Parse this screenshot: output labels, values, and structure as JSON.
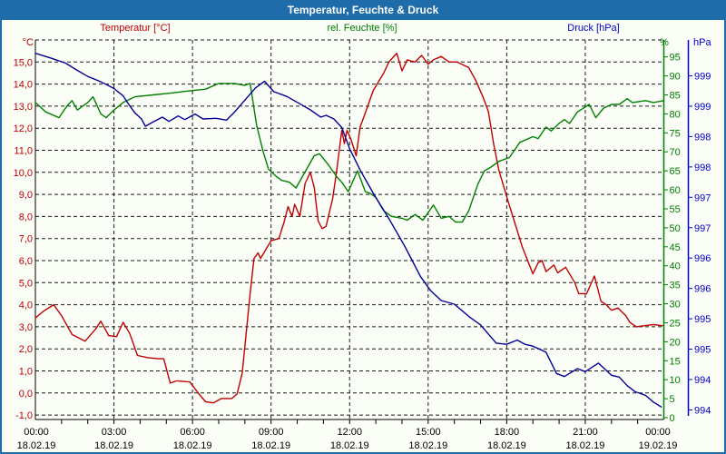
{
  "window": {
    "title": "Temperatur, Feuchte & Druck"
  },
  "colors": {
    "titlebar": "#1f6cab",
    "frame": "#1f6cab",
    "grid": "#1a1a1a",
    "x_label": "#000000"
  },
  "chart_data": {
    "type": "line",
    "title": "Temperatur, Feuchte & Druck",
    "grid": "dashed",
    "x_axis": {
      "range_hours": [
        0,
        24
      ],
      "minor_tick_every_hours": 1,
      "major_tick_every_hours": 3,
      "major_ticks": [
        {
          "hour": 0,
          "time": "00:00",
          "date": "18.02.19"
        },
        {
          "hour": 3,
          "time": "03:00",
          "date": "18.02.19"
        },
        {
          "hour": 6,
          "time": "06:00",
          "date": "18.02.19"
        },
        {
          "hour": 9,
          "time": "09:00",
          "date": "18.02.19"
        },
        {
          "hour": 12,
          "time": "12:00",
          "date": "18.02.19"
        },
        {
          "hour": 15,
          "time": "15:00",
          "date": "18.02.19"
        },
        {
          "hour": 18,
          "time": "18:00",
          "date": "18.02.19"
        },
        {
          "hour": 21,
          "time": "21:00",
          "date": "18.02.19"
        },
        {
          "hour": 24,
          "time": "00:00",
          "date": "19.02.19"
        }
      ]
    },
    "axes": {
      "temperature": {
        "title": "Temperatur [°C]",
        "unit_label": "°C",
        "color": "#c00000",
        "side": "left",
        "range": [
          -1.2,
          16.0
        ],
        "tick_values": [
          15,
          14,
          13,
          12,
          11,
          10,
          9,
          8,
          7,
          6,
          5,
          4,
          3,
          2,
          1,
          0,
          -1
        ],
        "tick_labels": [
          "15,0",
          "14,0",
          "13,0",
          "12,0",
          "11,0",
          "10,0",
          "9,0",
          "8,0",
          "7,0",
          "6,0",
          "5,0",
          "4,0",
          "3,0",
          "2,0",
          "1,0",
          "0,0",
          "-1,0"
        ]
      },
      "humidity": {
        "title": "rel. Feuchte [%]",
        "unit_label": "%",
        "color": "#008000",
        "side": "right",
        "range": [
          0,
          100
        ],
        "tick_values": [
          95,
          90,
          85,
          80,
          75,
          70,
          65,
          60,
          55,
          50,
          45,
          40,
          35,
          30,
          25,
          20,
          15,
          10,
          5,
          0
        ],
        "tick_labels": [
          "95",
          "90",
          "85",
          "80",
          "75",
          "70",
          "65",
          "60",
          "55",
          "50",
          "45",
          "40",
          "35",
          "30",
          "25",
          "20",
          "15",
          "10",
          "5",
          "0"
        ]
      },
      "pressure": {
        "title": "Druck [hPa]",
        "unit_label": "hPa",
        "color": "#0000cc",
        "side": "far-right",
        "range": [
          993.85,
          1000.1
        ],
        "tick_values": [
          999.5,
          999.0,
          998.5,
          998.0,
          997.5,
          997.0,
          996.5,
          996.0,
          995.5,
          995.0,
          994.5,
          994.0
        ],
        "tick_labels": [
          "999",
          "999",
          "998",
          "998",
          "997",
          "997",
          "996",
          "996",
          "995",
          "995",
          "994",
          "994"
        ]
      }
    },
    "series": [
      {
        "name": "Temperatur",
        "axis": "temperature",
        "color": "#c00000",
        "points": [
          [
            0,
            3.4
          ],
          [
            0.3,
            3.7
          ],
          [
            0.7,
            4.0
          ],
          [
            1.0,
            3.5
          ],
          [
            1.4,
            2.65
          ],
          [
            1.9,
            2.35
          ],
          [
            2.3,
            2.9
          ],
          [
            2.5,
            3.25
          ],
          [
            2.8,
            2.6
          ],
          [
            3.1,
            2.55
          ],
          [
            3.35,
            3.2
          ],
          [
            3.6,
            2.7
          ],
          [
            3.9,
            1.7
          ],
          [
            4.3,
            1.6
          ],
          [
            4.7,
            1.55
          ],
          [
            4.9,
            1.55
          ],
          [
            5.15,
            0.45
          ],
          [
            5.4,
            0.55
          ],
          [
            5.9,
            0.5
          ],
          [
            6.25,
            -0.05
          ],
          [
            6.5,
            -0.4
          ],
          [
            6.8,
            -0.45
          ],
          [
            7.1,
            -0.25
          ],
          [
            7.5,
            -0.25
          ],
          [
            7.7,
            -0.05
          ],
          [
            7.9,
            0.9
          ],
          [
            8.0,
            2.1
          ],
          [
            8.2,
            4.5
          ],
          [
            8.35,
            6.1
          ],
          [
            8.5,
            6.35
          ],
          [
            8.6,
            6.1
          ],
          [
            9.0,
            6.9
          ],
          [
            9.3,
            7.0
          ],
          [
            9.5,
            7.75
          ],
          [
            9.65,
            8.45
          ],
          [
            9.8,
            8.0
          ],
          [
            9.9,
            8.55
          ],
          [
            10.1,
            8.0
          ],
          [
            10.3,
            9.5
          ],
          [
            10.5,
            10.0
          ],
          [
            10.65,
            9.3
          ],
          [
            10.8,
            7.8
          ],
          [
            10.95,
            7.45
          ],
          [
            11.1,
            7.55
          ],
          [
            11.35,
            8.8
          ],
          [
            11.5,
            10.0
          ],
          [
            11.7,
            11.9
          ],
          [
            11.8,
            11.3
          ],
          [
            11.9,
            11.9
          ],
          [
            12.05,
            11.5
          ],
          [
            12.25,
            10.75
          ],
          [
            12.4,
            12.05
          ],
          [
            12.6,
            12.7
          ],
          [
            12.9,
            13.7
          ],
          [
            13.3,
            14.5
          ],
          [
            13.5,
            15.0
          ],
          [
            13.8,
            15.4
          ],
          [
            14.0,
            14.6
          ],
          [
            14.2,
            15.1
          ],
          [
            14.5,
            15.0
          ],
          [
            14.75,
            15.3
          ],
          [
            15.0,
            14.9
          ],
          [
            15.2,
            15.1
          ],
          [
            15.5,
            15.25
          ],
          [
            15.8,
            15.0
          ],
          [
            16.1,
            15.0
          ],
          [
            16.55,
            14.75
          ],
          [
            16.8,
            14.2
          ],
          [
            17.1,
            13.4
          ],
          [
            17.3,
            12.75
          ],
          [
            17.5,
            11.3
          ],
          [
            17.7,
            10.1
          ],
          [
            18.05,
            8.7
          ],
          [
            18.3,
            7.75
          ],
          [
            18.6,
            6.6
          ],
          [
            19.0,
            5.4
          ],
          [
            19.2,
            5.9
          ],
          [
            19.35,
            6.0
          ],
          [
            19.5,
            5.5
          ],
          [
            19.8,
            5.8
          ],
          [
            19.95,
            5.45
          ],
          [
            20.25,
            5.7
          ],
          [
            20.6,
            5.0
          ],
          [
            20.75,
            4.5
          ],
          [
            21.05,
            4.5
          ],
          [
            21.35,
            5.3
          ],
          [
            21.6,
            4.15
          ],
          [
            21.8,
            4.0
          ],
          [
            22.0,
            3.75
          ],
          [
            22.25,
            3.85
          ],
          [
            22.55,
            3.5
          ],
          [
            22.7,
            3.2
          ],
          [
            22.95,
            3.0
          ],
          [
            23.25,
            3.05
          ],
          [
            23.6,
            3.1
          ],
          [
            23.95,
            3.05
          ]
        ]
      },
      {
        "name": "rel. Feuchte",
        "axis": "humidity",
        "color": "#008000",
        "points": [
          [
            0,
            83
          ],
          [
            0.4,
            80.5
          ],
          [
            0.9,
            79
          ],
          [
            1.2,
            82
          ],
          [
            1.4,
            83.5
          ],
          [
            1.6,
            81
          ],
          [
            2.0,
            83
          ],
          [
            2.2,
            84.5
          ],
          [
            2.5,
            80
          ],
          [
            2.7,
            79
          ],
          [
            3.0,
            81
          ],
          [
            3.35,
            83
          ],
          [
            3.8,
            84.5
          ],
          [
            4.5,
            85
          ],
          [
            5.2,
            85.5
          ],
          [
            5.8,
            86
          ],
          [
            6.5,
            86.5
          ],
          [
            7.0,
            88
          ],
          [
            7.6,
            88
          ],
          [
            8.0,
            87.5
          ],
          [
            8.2,
            88
          ],
          [
            8.45,
            77
          ],
          [
            8.7,
            70
          ],
          [
            8.9,
            65.5
          ],
          [
            9.2,
            63.5
          ],
          [
            9.4,
            62.5
          ],
          [
            9.7,
            62
          ],
          [
            9.95,
            60.5
          ],
          [
            10.2,
            63.5
          ],
          [
            10.65,
            69
          ],
          [
            10.85,
            69.5
          ],
          [
            11.2,
            66.5
          ],
          [
            11.5,
            63.5
          ],
          [
            11.7,
            62
          ],
          [
            11.95,
            59.5
          ],
          [
            12.3,
            65
          ],
          [
            12.6,
            59.5
          ],
          [
            12.8,
            59
          ],
          [
            13.0,
            58
          ],
          [
            13.3,
            54.5
          ],
          [
            13.6,
            53
          ],
          [
            14.0,
            52.5
          ],
          [
            14.2,
            52
          ],
          [
            14.5,
            53.5
          ],
          [
            14.8,
            52
          ],
          [
            15.2,
            56
          ],
          [
            15.5,
            52.5
          ],
          [
            15.8,
            53
          ],
          [
            16.05,
            51.5
          ],
          [
            16.3,
            51.5
          ],
          [
            16.55,
            54.5
          ],
          [
            16.9,
            61.5
          ],
          [
            17.15,
            65
          ],
          [
            17.4,
            66
          ],
          [
            17.7,
            67.5
          ],
          [
            18.1,
            68.5
          ],
          [
            18.5,
            72.5
          ],
          [
            19.0,
            74
          ],
          [
            19.2,
            73.5
          ],
          [
            19.5,
            76.5
          ],
          [
            19.7,
            75.5
          ],
          [
            20.0,
            77.5
          ],
          [
            20.2,
            78.5
          ],
          [
            20.4,
            77.5
          ],
          [
            20.7,
            80.5
          ],
          [
            21.15,
            82.5
          ],
          [
            21.4,
            79
          ],
          [
            21.7,
            81.5
          ],
          [
            22.0,
            82.5
          ],
          [
            22.3,
            82.5
          ],
          [
            22.6,
            84
          ],
          [
            22.8,
            83
          ],
          [
            23.3,
            83.5
          ],
          [
            23.6,
            83
          ],
          [
            24.0,
            83.5
          ]
        ]
      },
      {
        "name": "Druck",
        "axis": "pressure",
        "color": "#000099",
        "points": [
          [
            0,
            999.87
          ],
          [
            0.6,
            999.79
          ],
          [
            1.15,
            999.71
          ],
          [
            1.6,
            999.59
          ],
          [
            2.0,
            999.49
          ],
          [
            2.4,
            999.42
          ],
          [
            2.7,
            999.36
          ],
          [
            3.0,
            999.29
          ],
          [
            3.35,
            999.17
          ],
          [
            3.55,
            999.04
          ],
          [
            3.8,
            998.89
          ],
          [
            4.05,
            998.79
          ],
          [
            4.2,
            998.67
          ],
          [
            4.5,
            998.74
          ],
          [
            4.85,
            998.82
          ],
          [
            5.1,
            998.75
          ],
          [
            5.45,
            998.84
          ],
          [
            5.7,
            998.78
          ],
          [
            6.1,
            998.87
          ],
          [
            6.4,
            998.79
          ],
          [
            6.9,
            998.8
          ],
          [
            7.3,
            998.77
          ],
          [
            7.6,
            998.9
          ],
          [
            8.0,
            999.1
          ],
          [
            8.4,
            999.3
          ],
          [
            8.75,
            999.41
          ],
          [
            9.1,
            999.24
          ],
          [
            9.6,
            999.16
          ],
          [
            10.1,
            999.04
          ],
          [
            10.5,
            998.94
          ],
          [
            10.9,
            998.82
          ],
          [
            11.1,
            998.85
          ],
          [
            11.4,
            998.79
          ],
          [
            11.7,
            998.65
          ],
          [
            12.0,
            998.3
          ],
          [
            12.4,
            997.95
          ],
          [
            12.9,
            997.57
          ],
          [
            13.5,
            997.15
          ],
          [
            14.1,
            996.7
          ],
          [
            14.4,
            996.45
          ],
          [
            14.7,
            996.2
          ],
          [
            15.1,
            995.96
          ],
          [
            15.5,
            995.8
          ],
          [
            16.0,
            995.74
          ],
          [
            16.55,
            995.54
          ],
          [
            17.0,
            995.4
          ],
          [
            17.6,
            995.1
          ],
          [
            18.0,
            995.08
          ],
          [
            18.4,
            995.15
          ],
          [
            18.7,
            995.08
          ],
          [
            19.0,
            995.05
          ],
          [
            19.5,
            994.95
          ],
          [
            19.9,
            994.6
          ],
          [
            20.2,
            994.55
          ],
          [
            20.7,
            994.68
          ],
          [
            21.0,
            994.63
          ],
          [
            21.5,
            994.77
          ],
          [
            22.0,
            994.57
          ],
          [
            22.3,
            994.54
          ],
          [
            22.6,
            994.4
          ],
          [
            22.9,
            994.3
          ],
          [
            23.3,
            994.24
          ],
          [
            23.6,
            994.13
          ],
          [
            23.9,
            994.05
          ]
        ]
      }
    ]
  }
}
